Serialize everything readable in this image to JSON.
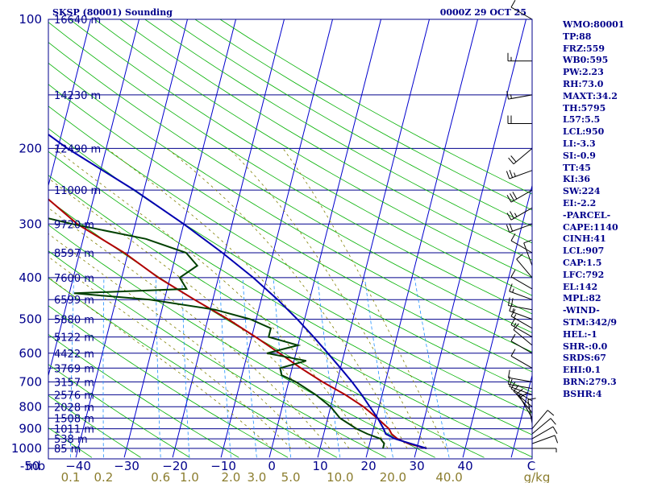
{
  "header": {
    "station": "SKSP (80001) Sounding",
    "time": "0000Z 29 OCT 25"
  },
  "indices": [
    "WMO:80001",
    "TP:88",
    "FRZ:559",
    "WB0:595",
    "PW:2.23",
    "RH:73.0",
    "MAXT:34.2",
    "TH:5795",
    "L57:5.5",
    "LCL:950",
    "LI:-3.3",
    "SI:-0.9",
    "TT:45",
    "KI:36",
    "SW:224",
    "EI:-2.2",
    "-PARCEL-",
    "CAPE:1140",
    "CINH:41",
    "LCL:907",
    "CAP:1.5",
    "LFC:792",
    "EL:142",
    "MPL:82",
    "-WIND-",
    "STM:342/9",
    "HEL:-1",
    "SHR-:0.0",
    "SRDS:67",
    "EHI:0.1",
    "BRN:279.3",
    "BSHR:4"
  ],
  "colors": {
    "frame": "#00008b",
    "isobar": "#00008b",
    "isotherm": "#0000cd",
    "dry_adiabat": "#00b000",
    "moist_adiabat": "#808000",
    "mixing_ratio": "#1e90ff",
    "temperature": "#b00000",
    "dewpoint": "#004000",
    "parcel": "#0000b0",
    "wind_barb": "#000000"
  },
  "chart_data": {
    "type": "line",
    "projection": "skew-t log-p",
    "ylabel": "mb",
    "pressure_ticks": [
      100,
      200,
      300,
      400,
      500,
      600,
      700,
      800,
      900,
      1000
    ],
    "isobar_levels": [
      100,
      150,
      200,
      250,
      300,
      350,
      400,
      450,
      500,
      550,
      600,
      650,
      700,
      750,
      800,
      850,
      900,
      950,
      1000
    ],
    "height_labels": [
      {
        "p": 100,
        "h": "16640 m"
      },
      {
        "p": 150,
        "h": "14230 m"
      },
      {
        "p": 200,
        "h": "12490 m"
      },
      {
        "p": 250,
        "h": "11000 m"
      },
      {
        "p": 300,
        "h": "9720 m"
      },
      {
        "p": 350,
        "h": "8597 m"
      },
      {
        "p": 400,
        "h": "7600 m"
      },
      {
        "p": 450,
        "h": "6599 m"
      },
      {
        "p": 500,
        "h": "5880 m"
      },
      {
        "p": 550,
        "h": "5122 m"
      },
      {
        "p": 600,
        "h": "4422 m"
      },
      {
        "p": 650,
        "h": "3769 m"
      },
      {
        "p": 700,
        "h": "3157 m"
      },
      {
        "p": 750,
        "h": "2576 m"
      },
      {
        "p": 800,
        "h": "2028 m"
      },
      {
        "p": 850,
        "h": "1508 m"
      },
      {
        "p": 900,
        "h": "1011 m"
      },
      {
        "p": 950,
        "h": "538 m"
      },
      {
        "p": 1000,
        "h": "85 m"
      }
    ],
    "temperature_ticks": [
      -50,
      -40,
      -30,
      -20,
      -10,
      0,
      10,
      20,
      30,
      40
    ],
    "temperature_tick_labels": [
      "-50",
      "−40",
      "−30",
      "−20",
      "−10",
      "0",
      "10",
      "20",
      "30",
      "40",
      "C"
    ],
    "mixing_ratio_labels": [
      "0.1",
      "0.2",
      "0.6",
      "1.0",
      "2.0",
      "3.0",
      "5.0",
      "10.0",
      "20.0",
      "40.0",
      "g/kg"
    ],
    "mixing_ratios": [
      0.1,
      0.2,
      0.6,
      1.0,
      2.0,
      3.0,
      5.0,
      10.0,
      20.0,
      40.0
    ],
    "dry_adiabats_C": [
      -40,
      -30,
      -20,
      -10,
      0,
      10,
      20,
      30,
      40,
      50,
      60,
      70,
      80,
      90,
      100,
      110,
      120,
      130,
      140,
      150,
      160,
      170,
      180,
      190
    ],
    "moist_adiabats_C": [
      0,
      4,
      8,
      12,
      16,
      20,
      24,
      28,
      32,
      36
    ],
    "xlim": [
      -50,
      50
    ],
    "ylim": [
      1050,
      100
    ],
    "series": [
      {
        "name": "Temperature",
        "p": [
          1000,
          975,
          950,
          925,
          900,
          850,
          800,
          750,
          700,
          650,
          600,
          550,
          500,
          450,
          400,
          350,
          300,
          250,
          200,
          150,
          125,
          100
        ],
        "t": [
          32.0,
          28.0,
          25.5,
          24.0,
          23.2,
          20.2,
          16.8,
          12.4,
          7.0,
          1.8,
          -3.4,
          -9.2,
          -15.8,
          -23.8,
          -32.4,
          -40.8,
          -52.0,
          -62.0,
          -73.0,
          -84.0,
          -86.8,
          -87.9
        ]
      },
      {
        "name": "Dewpoint",
        "p": [
          1000,
          975,
          950,
          925,
          900,
          850,
          800,
          750,
          700,
          675,
          650,
          625,
          600,
          575,
          550,
          525,
          500,
          475,
          450,
          435,
          425,
          400,
          375,
          350,
          325,
          300,
          280,
          250,
          225,
          200,
          175,
          150,
          125,
          100
        ],
        "t": [
          23.0,
          23.0,
          22.0,
          19.0,
          16.5,
          12.5,
          10.0,
          6.3,
          1.5,
          -1.8,
          -2.5,
          2.5,
          -6.0,
          0.0,
          -6.5,
          -6.5,
          -11.2,
          -19.0,
          -33.0,
          -49.0,
          -26.0,
          -28.0,
          -25.0,
          -28.0,
          -37.0,
          -53.0,
          -65.0,
          -66.0,
          -68.0,
          -76.0,
          -85.0,
          -99.5,
          -106.0,
          -110.0
        ]
      },
      {
        "name": "Parcel",
        "p": [
          1000,
          975,
          950,
          925,
          900,
          850,
          800,
          750,
          700,
          650,
          600,
          550,
          500,
          450,
          400,
          350,
          300,
          250,
          200,
          150,
          125,
          100,
          80
        ],
        "t": [
          32.0,
          28.5,
          25.0,
          22.8,
          22.1,
          20.3,
          18.1,
          15.8,
          13.1,
          10.0,
          6.6,
          2.8,
          -1.5,
          -6.6,
          -12.8,
          -20.5,
          -30.0,
          -42.0,
          -58.0,
          -76.0,
          -84.0,
          -90.0,
          -100.0
        ]
      }
    ],
    "wind_barbs": [
      {
        "p": 1000,
        "dir": 90,
        "kt": 5
      },
      {
        "p": 975,
        "dir": 70,
        "kt": 10
      },
      {
        "p": 950,
        "dir": 60,
        "kt": 10
      },
      {
        "p": 925,
        "dir": 50,
        "kt": 10
      },
      {
        "p": 900,
        "dir": 40,
        "kt": 10
      },
      {
        "p": 875,
        "dir": 350,
        "kt": 10
      },
      {
        "p": 850,
        "dir": 330,
        "kt": 10
      },
      {
        "p": 825,
        "dir": 320,
        "kt": 15
      },
      {
        "p": 800,
        "dir": 310,
        "kt": 10
      },
      {
        "p": 775,
        "dir": 300,
        "kt": 10
      },
      {
        "p": 750,
        "dir": 290,
        "kt": 10
      },
      {
        "p": 725,
        "dir": 280,
        "kt": 10
      },
      {
        "p": 700,
        "dir": 280,
        "kt": 10
      },
      {
        "p": 650,
        "dir": 300,
        "kt": 10
      },
      {
        "p": 600,
        "dir": 300,
        "kt": 10
      },
      {
        "p": 575,
        "dir": 310,
        "kt": 10
      },
      {
        "p": 550,
        "dir": 300,
        "kt": 15
      },
      {
        "p": 525,
        "dir": 300,
        "kt": 15
      },
      {
        "p": 500,
        "dir": 290,
        "kt": 15
      },
      {
        "p": 475,
        "dir": 280,
        "kt": 20
      },
      {
        "p": 450,
        "dir": 290,
        "kt": 15
      },
      {
        "p": 425,
        "dir": 300,
        "kt": 10
      },
      {
        "p": 400,
        "dir": 320,
        "kt": 10
      },
      {
        "p": 375,
        "dir": 340,
        "kt": 10
      },
      {
        "p": 350,
        "dir": 300,
        "kt": 10
      },
      {
        "p": 300,
        "dir": 250,
        "kt": 20
      },
      {
        "p": 275,
        "dir": 240,
        "kt": 25
      },
      {
        "p": 250,
        "dir": 240,
        "kt": 30
      },
      {
        "p": 225,
        "dir": 250,
        "kt": 25
      },
      {
        "p": 200,
        "dir": 230,
        "kt": 20
      },
      {
        "p": 175,
        "dir": 270,
        "kt": 20
      },
      {
        "p": 150,
        "dir": 260,
        "kt": 15
      },
      {
        "p": 125,
        "dir": 270,
        "kt": 15
      },
      {
        "p": 100,
        "dir": 300,
        "kt": 10
      }
    ]
  }
}
